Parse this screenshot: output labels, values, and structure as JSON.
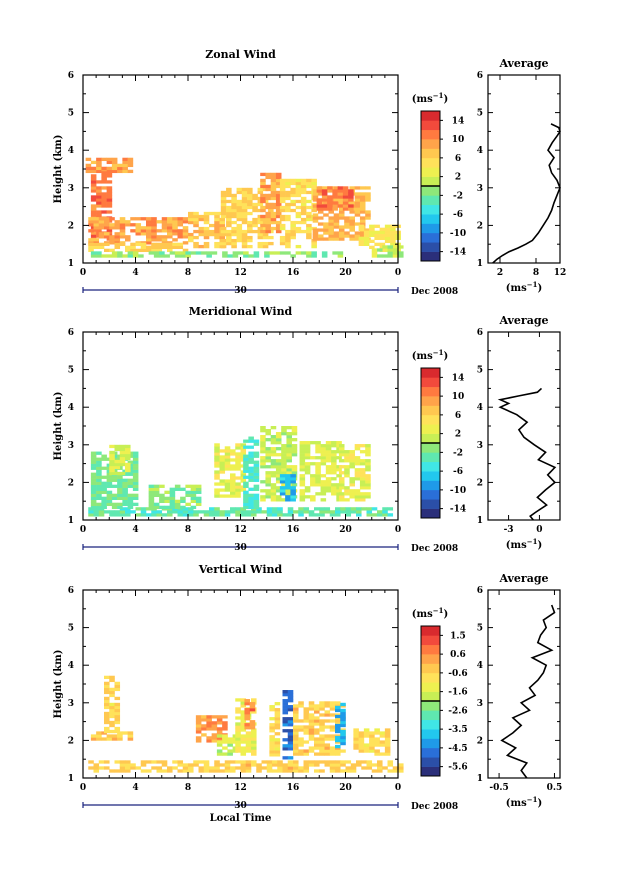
{
  "colorscale": [
    "#2b2f7a",
    "#2b4fa8",
    "#2a6fd8",
    "#1f9ae8",
    "#22c8ee",
    "#40e6e6",
    "#5fe8b0",
    "#8ee87a",
    "#c8ef55",
    "#eef050",
    "#ffe25a",
    "#ffc850",
    "#ffa44a",
    "#ff7a40",
    "#f24a3c",
    "#d92a2e"
  ],
  "common": {
    "xticks": [
      "0",
      "4",
      "8",
      "12",
      "16",
      "20",
      "0"
    ],
    "date_label": "30",
    "date_right": "Dec 2008",
    "ylabel": "Height (km)",
    "yticks": [
      "1",
      "2",
      "3",
      "4",
      "5",
      "6"
    ],
    "cb_unit": "(ms",
    "cb_unit_sup": "−1",
    "cb_unit_close": ")",
    "avg_title": "Average",
    "avg_unit": "(ms",
    "avg_unit_sup": "−1",
    "avg_unit_close": ")",
    "xlabel": "Local Time"
  },
  "chart_data": [
    {
      "type": "heatmap",
      "title": "Zonal Wind",
      "ylabel": "Height (km)",
      "xlabel": "",
      "xlim": [
        0,
        24
      ],
      "ylim": [
        1,
        6
      ],
      "colorbar": {
        "ticks": [
          "14",
          "10",
          "6",
          "2",
          "-2",
          "-6",
          "-10",
          "-14"
        ],
        "range": [
          -16,
          16
        ],
        "unit": "ms-1"
      },
      "regions": [
        {
          "x": [
            0.2,
            3.6
          ],
          "y": [
            3.4,
            3.8
          ],
          "value": 9
        },
        {
          "x": [
            0.6,
            2.0
          ],
          "y": [
            1.6,
            3.4
          ],
          "value": 11
        },
        {
          "x": [
            0.4,
            8.0
          ],
          "y": [
            1.5,
            2.2
          ],
          "value": 9
        },
        {
          "x": [
            0.4,
            8.0
          ],
          "y": [
            1.3,
            1.5
          ],
          "value": 6
        },
        {
          "x": [
            0.6,
            19.5
          ],
          "y": [
            1.15,
            1.3
          ],
          "value": -1
        },
        {
          "x": [
            8.0,
            10.5
          ],
          "y": [
            1.4,
            2.3
          ],
          "value": 7
        },
        {
          "x": [
            10.5,
            14.5
          ],
          "y": [
            1.4,
            3.0
          ],
          "value": 6
        },
        {
          "x": [
            13.5,
            15.0
          ],
          "y": [
            1.8,
            3.4
          ],
          "value": 9
        },
        {
          "x": [
            15.0,
            17.5
          ],
          "y": [
            1.4,
            3.2
          ],
          "value": 5
        },
        {
          "x": [
            17.5,
            21.5
          ],
          "y": [
            1.6,
            3.0
          ],
          "value": 8
        },
        {
          "x": [
            17.8,
            20.5
          ],
          "y": [
            2.4,
            3.0
          ],
          "value": 11
        },
        {
          "x": [
            21.0,
            24.0
          ],
          "y": [
            1.3,
            2.0
          ],
          "value": 4
        },
        {
          "x": [
            22.0,
            24.0
          ],
          "y": [
            1.15,
            1.4
          ],
          "value": 1
        }
      ],
      "profile": {
        "xlim": [
          0,
          12
        ],
        "xticks": [
          "2",
          "8",
          "12"
        ],
        "xtick_values": [
          2,
          8,
          12
        ],
        "height": [
          1.0,
          1.1,
          1.2,
          1.3,
          1.4,
          1.5,
          1.6,
          1.8,
          2.0,
          2.2,
          2.4,
          2.6,
          2.8,
          3.0,
          3.2,
          3.4,
          3.6,
          3.8,
          4.0,
          4.2,
          4.4,
          4.5,
          4.6,
          4.7
        ],
        "values": [
          0.8,
          1.5,
          2.4,
          3.5,
          5.0,
          6.3,
          7.4,
          8.4,
          9.2,
          10.0,
          10.6,
          11.0,
          11.5,
          12.0,
          11.5,
          10.6,
          10.2,
          11.0,
          10.0,
          10.7,
          11.6,
          12.0,
          11.8,
          10.5
        ]
      }
    },
    {
      "type": "heatmap",
      "title": "Meridional Wind",
      "ylabel": "Height (km)",
      "xlabel": "",
      "xlim": [
        0,
        24
      ],
      "ylim": [
        1,
        6
      ],
      "colorbar": {
        "ticks": [
          "14",
          "10",
          "6",
          "2",
          "-2",
          "-6",
          "-10",
          "-14"
        ],
        "range": [
          -16,
          16
        ],
        "unit": "ms-1"
      },
      "regions": [
        {
          "x": [
            0.4,
            23.5
          ],
          "y": [
            1.1,
            1.3
          ],
          "value": -3
        },
        {
          "x": [
            0.6,
            3.8
          ],
          "y": [
            1.3,
            2.8
          ],
          "value": -2
        },
        {
          "x": [
            2.0,
            3.4
          ],
          "y": [
            2.2,
            3.0
          ],
          "value": 2
        },
        {
          "x": [
            5.0,
            9.0
          ],
          "y": [
            1.3,
            1.9
          ],
          "value": -1
        },
        {
          "x": [
            10.0,
            12.2
          ],
          "y": [
            1.6,
            3.0
          ],
          "value": 3
        },
        {
          "x": [
            12.2,
            13.2
          ],
          "y": [
            1.3,
            3.2
          ],
          "value": -4
        },
        {
          "x": [
            13.5,
            16.0
          ],
          "y": [
            1.5,
            3.5
          ],
          "value": 1
        },
        {
          "x": [
            15.0,
            16.0
          ],
          "y": [
            1.5,
            2.2
          ],
          "value": -7
        },
        {
          "x": [
            16.5,
            19.5
          ],
          "y": [
            1.5,
            3.1
          ],
          "value": 2
        },
        {
          "x": [
            19.5,
            21.8
          ],
          "y": [
            1.5,
            3.0
          ],
          "value": 3
        }
      ],
      "profile": {
        "xlim": [
          -5,
          2
        ],
        "xticks": [
          "-3",
          "0"
        ],
        "xtick_values": [
          -3,
          0
        ],
        "height": [
          1.0,
          1.1,
          1.2,
          1.4,
          1.6,
          1.8,
          2.0,
          2.2,
          2.4,
          2.6,
          2.8,
          3.0,
          3.2,
          3.4,
          3.6,
          3.8,
          4.0,
          4.1,
          4.2,
          4.3,
          4.4,
          4.5
        ],
        "values": [
          -0.6,
          -0.9,
          -0.4,
          0.7,
          -0.2,
          0.6,
          1.5,
          0.8,
          1.5,
          -0.1,
          0.6,
          -0.5,
          -1.5,
          -2.0,
          -1.2,
          -2.2,
          -3.8,
          -3.0,
          -3.8,
          -2.0,
          -0.2,
          0.2
        ]
      }
    },
    {
      "type": "heatmap",
      "title": "Vertical Wind",
      "ylabel": "Height (km)",
      "xlabel": "Local Time",
      "xlim": [
        0,
        24
      ],
      "ylim": [
        1,
        6
      ],
      "colorbar": {
        "ticks": [
          "1.5",
          "0.6",
          "-0.6",
          "-1.6",
          "-2.6",
          "-3.5",
          "-4.5",
          "-5.6"
        ],
        "range": [
          -6.4,
          2.4
        ],
        "unit": "ms-1"
      },
      "regions": [
        {
          "x": [
            0.4,
            24.0
          ],
          "y": [
            1.15,
            1.45
          ],
          "value": -0.3
        },
        {
          "x": [
            0.6,
            3.6
          ],
          "y": [
            2.0,
            2.2
          ],
          "value": -0.1
        },
        {
          "x": [
            1.6,
            2.6
          ],
          "y": [
            2.2,
            3.7
          ],
          "value": -0.4
        },
        {
          "x": [
            8.6,
            10.8
          ],
          "y": [
            1.95,
            2.6
          ],
          "value": 0.6
        },
        {
          "x": [
            10.2,
            11.6
          ],
          "y": [
            1.6,
            2.1
          ],
          "value": -1.6
        },
        {
          "x": [
            11.6,
            13.2
          ],
          "y": [
            1.6,
            3.1
          ],
          "value": -1.0
        },
        {
          "x": [
            12.3,
            13.0
          ],
          "y": [
            2.3,
            3.1
          ],
          "value": 0.8
        },
        {
          "x": [
            14.2,
            14.8
          ],
          "y": [
            1.5,
            3.0
          ],
          "value": -0.6
        },
        {
          "x": [
            15.2,
            15.9
          ],
          "y": [
            1.5,
            3.3
          ],
          "value": -5.0
        },
        {
          "x": [
            16.0,
            19.8
          ],
          "y": [
            1.6,
            3.0
          ],
          "value": -0.3
        },
        {
          "x": [
            19.2,
            19.9
          ],
          "y": [
            1.8,
            3.0
          ],
          "value": -4.2
        },
        {
          "x": [
            20.6,
            23.2
          ],
          "y": [
            1.6,
            2.3
          ],
          "value": -0.5
        }
      ],
      "profile": {
        "xlim": [
          -0.7,
          0.6
        ],
        "xticks": [
          "-0.5",
          "0.5"
        ],
        "xtick_values": [
          -0.5,
          0.5
        ],
        "height": [
          1.0,
          1.2,
          1.4,
          1.6,
          1.8,
          2.0,
          2.2,
          2.4,
          2.6,
          2.8,
          3.0,
          3.2,
          3.4,
          3.6,
          3.8,
          4.0,
          4.2,
          4.4,
          4.6,
          4.8,
          5.0,
          5.2,
          5.4,
          5.6
        ],
        "values": [
          0.0,
          -0.1,
          0.0,
          -0.35,
          -0.2,
          -0.45,
          -0.25,
          -0.1,
          -0.25,
          0.05,
          -0.1,
          0.15,
          0.05,
          0.2,
          0.3,
          0.35,
          0.1,
          0.45,
          0.2,
          0.25,
          0.35,
          0.3,
          0.5,
          0.45
        ]
      }
    }
  ]
}
